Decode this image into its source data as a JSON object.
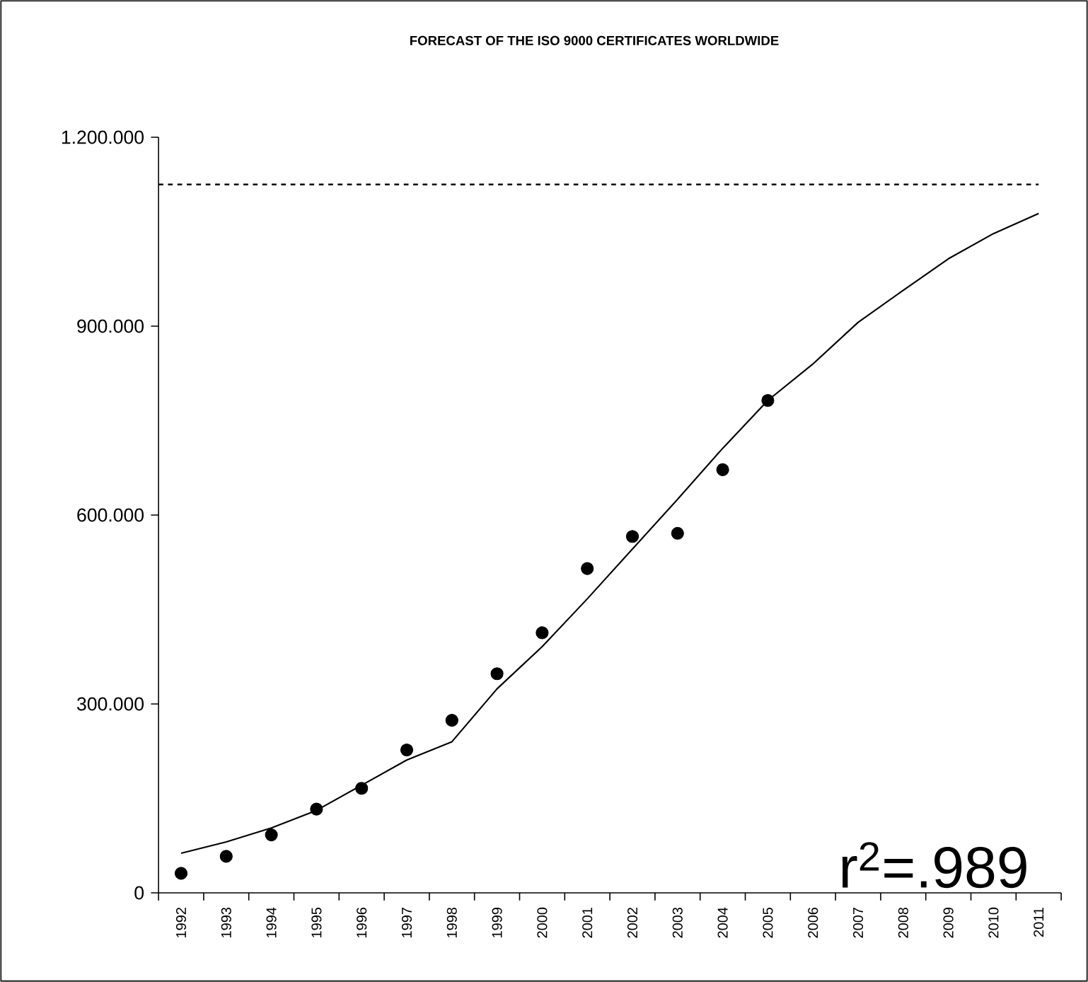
{
  "chart_data": {
    "type": "scatter",
    "title": "FORECAST OF THE ISO 9000 CERTIFICATES WORLDWIDE",
    "categories": [
      "1992",
      "1993",
      "1994",
      "1995",
      "1996",
      "1997",
      "1998",
      "1999",
      "2000",
      "2001",
      "2002",
      "2003",
      "2004",
      "2005",
      "2006",
      "2007",
      "2008",
      "2009",
      "2010",
      "2011"
    ],
    "series": [
      {
        "marker": "circle",
        "color": "#000000",
        "values": [
          31000,
          58000,
          92000,
          133000,
          166000,
          227000,
          274000,
          348000,
          413000,
          515000,
          566000,
          571000,
          672000,
          782000,
          null,
          null,
          null,
          null,
          null,
          null
        ]
      },
      {
        "type": "line",
        "marker": "none",
        "line_style": "solid",
        "color": "#000000",
        "values": [
          63000,
          81000,
          103000,
          131000,
          171000,
          211000,
          240000,
          324000,
          391000,
          467000,
          546000,
          625000,
          706000,
          782000,
          840000,
          906000,
          957000,
          1007000,
          1047000,
          1079000
        ]
      }
    ],
    "ylim": [
      0,
      1200000
    ],
    "yticks": [
      0,
      {
        "value": 300000,
        "label": "300.000"
      },
      {
        "value": 600000,
        "label": "600.000"
      },
      {
        "value": 900000,
        "label": "900.000"
      },
      {
        "value": 1200000,
        "label": "1.200.000"
      }
    ],
    "ref_lines": [
      {
        "axis": "y",
        "value": 1125000,
        "line_style": "dotted",
        "color": "#000000"
      }
    ],
    "annotations": [
      "r$^{2}$=.989"
    ]
  }
}
